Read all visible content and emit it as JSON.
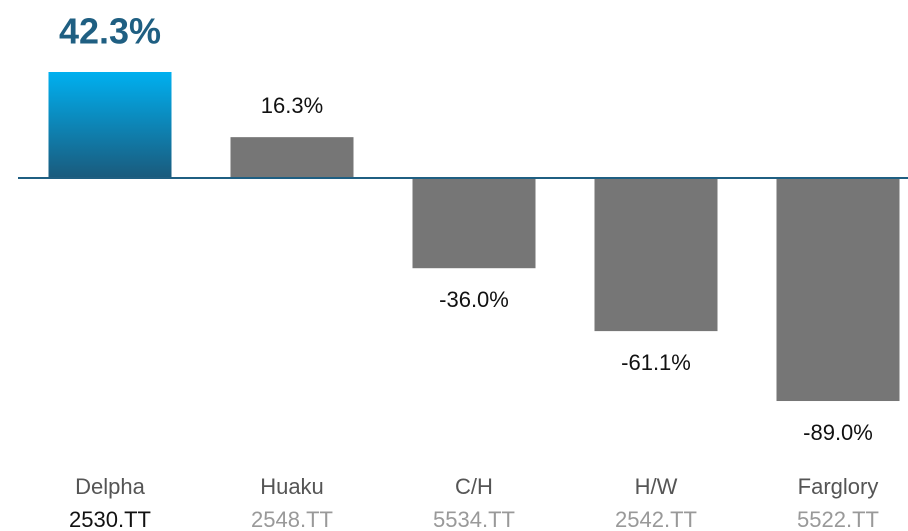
{
  "chart_data": {
    "type": "bar",
    "categories": [
      "Delpha",
      "Huaku",
      "C/H",
      "H/W",
      "Farglory"
    ],
    "tickers": [
      "2530.TT",
      "2548.TT",
      "5534.TT",
      "2542.TT",
      "5522.TT"
    ],
    "values": [
      42.3,
      16.3,
      -36.0,
      -61.1,
      -89.0
    ],
    "value_labels": [
      "42.3%",
      "16.3%",
      "-36.0%",
      "-61.1%",
      "-89.0%"
    ],
    "colors": [
      "#00b0f0",
      "#767676",
      "#767676",
      "#767676",
      "#767676"
    ]
  }
}
